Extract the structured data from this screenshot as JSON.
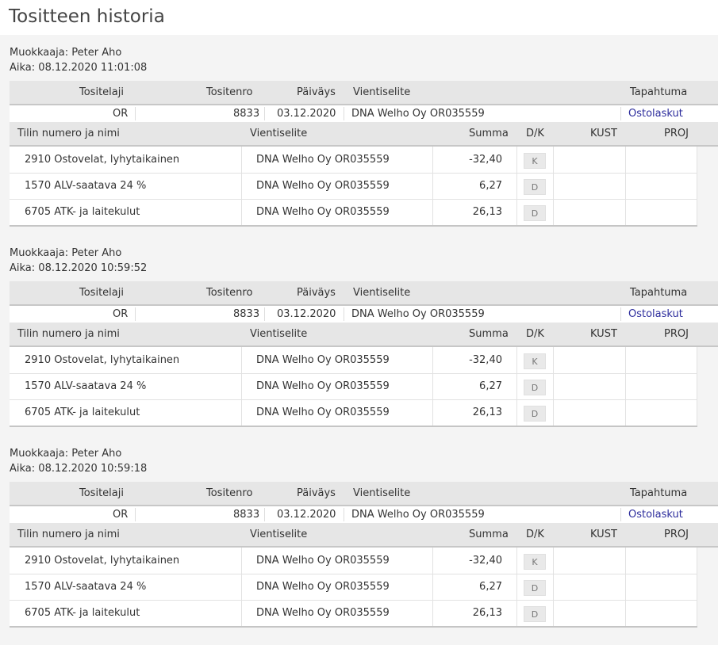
{
  "page": {
    "title": "Tositteen historia"
  },
  "labels": {
    "editor_prefix": "Muokkaaja:",
    "time_prefix": "Aika:",
    "col_tositelaji": "Tositelaji",
    "col_tositenro": "Tositenro",
    "col_paivays": "Päiväys",
    "col_vientiselite": "Vientiselite",
    "col_tapahtuma": "Tapahtuma",
    "col_tili": "Tilin numero ja nimi",
    "col_summa": "Summa",
    "col_dk": "D/K",
    "col_kust": "KUST",
    "col_proj": "PROJ"
  },
  "versions": [
    {
      "editor": "Peter Aho",
      "time": "08.12.2020 11:01:08",
      "voucher": {
        "tositelaji": "OR",
        "tositenro": "8833",
        "paivays": "03.12.2020",
        "vientiselite": "DNA Welho Oy OR035559",
        "tapahtuma": "Ostolaskut"
      },
      "lines": [
        {
          "tili": "2910 Ostovelat, lyhytaikainen",
          "selite": "DNA Welho Oy OR035559",
          "summa": "-32,40",
          "dk": "K",
          "kust": "",
          "proj": ""
        },
        {
          "tili": "1570 ALV-saatava 24 %",
          "selite": "DNA Welho Oy OR035559",
          "summa": "6,27",
          "dk": "D",
          "kust": "",
          "proj": ""
        },
        {
          "tili": "6705 ATK- ja laitekulut",
          "selite": "DNA Welho Oy OR035559",
          "summa": "26,13",
          "dk": "D",
          "kust": "",
          "proj": ""
        }
      ]
    },
    {
      "editor": "Peter Aho",
      "time": "08.12.2020 10:59:52",
      "voucher": {
        "tositelaji": "OR",
        "tositenro": "8833",
        "paivays": "03.12.2020",
        "vientiselite": "DNA Welho Oy OR035559",
        "tapahtuma": "Ostolaskut"
      },
      "lines": [
        {
          "tili": "2910 Ostovelat, lyhytaikainen",
          "selite": "DNA Welho Oy OR035559",
          "summa": "-32,40",
          "dk": "K",
          "kust": "",
          "proj": ""
        },
        {
          "tili": "1570 ALV-saatava 24 %",
          "selite": "DNA Welho Oy OR035559",
          "summa": "6,27",
          "dk": "D",
          "kust": "",
          "proj": ""
        },
        {
          "tili": "6705 ATK- ja laitekulut",
          "selite": "DNA Welho Oy OR035559",
          "summa": "26,13",
          "dk": "D",
          "kust": "",
          "proj": ""
        }
      ]
    },
    {
      "editor": "Peter Aho",
      "time": "08.12.2020 10:59:18",
      "voucher": {
        "tositelaji": "OR",
        "tositenro": "8833",
        "paivays": "03.12.2020",
        "vientiselite": "DNA Welho Oy OR035559",
        "tapahtuma": "Ostolaskut"
      },
      "lines": [
        {
          "tili": "2910 Ostovelat, lyhytaikainen",
          "selite": "DNA Welho Oy OR035559",
          "summa": "-32,40",
          "dk": "K",
          "kust": "",
          "proj": ""
        },
        {
          "tili": "1570 ALV-saatava 24 %",
          "selite": "DNA Welho Oy OR035559",
          "summa": "6,27",
          "dk": "D",
          "kust": "",
          "proj": ""
        },
        {
          "tili": "6705 ATK- ja laitekulut",
          "selite": "DNA Welho Oy OR035559",
          "summa": "26,13",
          "dk": "D",
          "kust": "",
          "proj": ""
        }
      ]
    }
  ]
}
